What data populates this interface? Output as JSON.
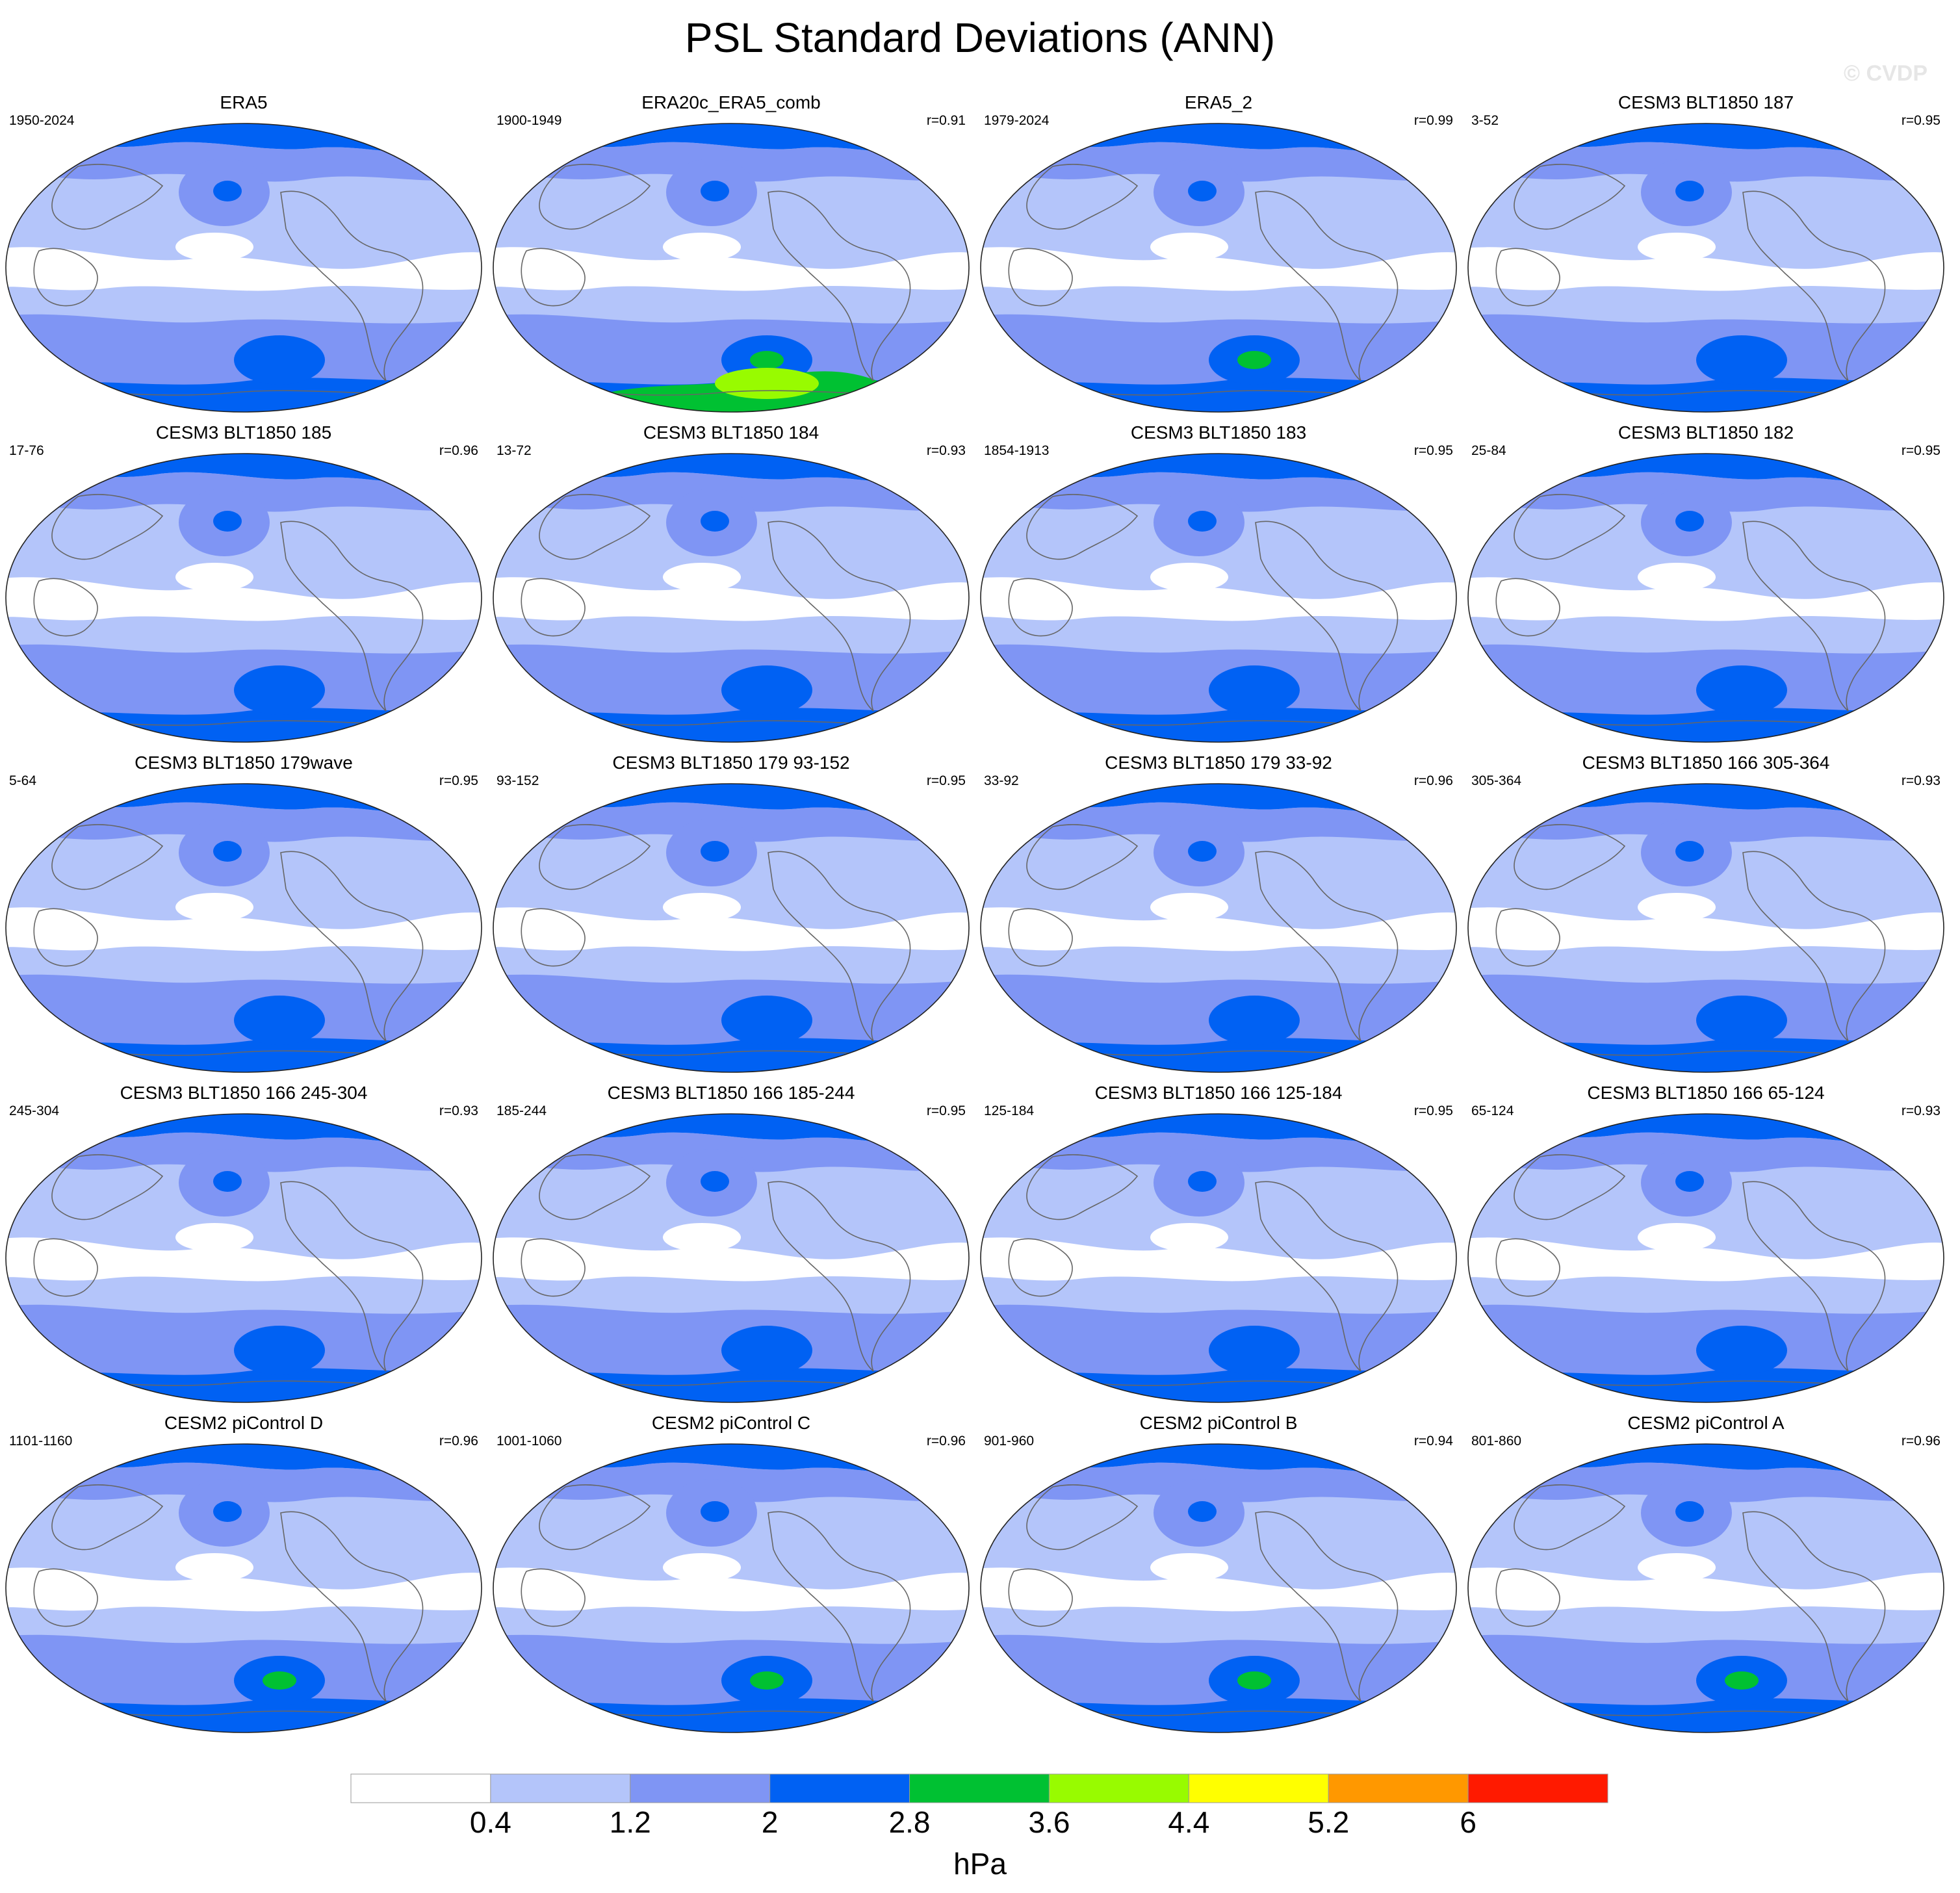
{
  "title": "PSL Standard Deviations (ANN)",
  "watermark": "© CVDP",
  "chart_data": {
    "type": "heatmap",
    "title": "PSL Standard Deviations (ANN)",
    "projection": "robinson",
    "variable": "PSL",
    "season": "ANN",
    "units": "hPa",
    "colorbar": {
      "levels": [
        "0.4",
        "1.2",
        "2",
        "2.8",
        "3.6",
        "4.4",
        "5.2",
        "6"
      ],
      "colors": [
        "#ffffff",
        "#b4c5fa",
        "#7f95f4",
        "#0061f3",
        "#00c132",
        "#98fb00",
        "#ffff00",
        "#ff9800",
        "#ff1a00"
      ]
    },
    "panels": [
      {
        "title": "ERA5",
        "years": "1950-2024",
        "r": "",
        "max_level": 3
      },
      {
        "title": "ERA20c_ERA5_comb",
        "years": "1900-1949",
        "r": "r=0.91",
        "max_level": 5
      },
      {
        "title": "ERA5_2",
        "years": "1979-2024",
        "r": "r=0.99",
        "max_level": 4
      },
      {
        "title": "CESM3 BLT1850 187",
        "years": "3-52",
        "r": "r=0.95",
        "max_level": 3
      },
      {
        "title": "CESM3 BLT1850 185",
        "years": "17-76",
        "r": "r=0.96",
        "max_level": 3
      },
      {
        "title": "CESM3 BLT1850 184",
        "years": "13-72",
        "r": "r=0.93",
        "max_level": 3
      },
      {
        "title": "CESM3 BLT1850 183",
        "years": "1854-1913",
        "r": "r=0.95",
        "max_level": 3
      },
      {
        "title": "CESM3 BLT1850 182",
        "years": "25-84",
        "r": "r=0.95",
        "max_level": 3
      },
      {
        "title": "CESM3 BLT1850 179wave",
        "years": "5-64",
        "r": "r=0.95",
        "max_level": 3
      },
      {
        "title": "CESM3 BLT1850 179 93-152",
        "years": "93-152",
        "r": "r=0.95",
        "max_level": 3
      },
      {
        "title": "CESM3 BLT1850 179 33-92",
        "years": "33-92",
        "r": "r=0.96",
        "max_level": 3
      },
      {
        "title": "CESM3 BLT1850 166 305-364",
        "years": "305-364",
        "r": "r=0.93",
        "max_level": 3
      },
      {
        "title": "CESM3 BLT1850 166 245-304",
        "years": "245-304",
        "r": "r=0.93",
        "max_level": 3
      },
      {
        "title": "CESM3 BLT1850 166 185-244",
        "years": "185-244",
        "r": "r=0.95",
        "max_level": 3
      },
      {
        "title": "CESM3 BLT1850 166 125-184",
        "years": "125-184",
        "r": "r=0.95",
        "max_level": 3
      },
      {
        "title": "CESM3 BLT1850 166 65-124",
        "years": "65-124",
        "r": "r=0.93",
        "max_level": 3
      },
      {
        "title": "CESM2 piControl D",
        "years": "1101-1160",
        "r": "r=0.96",
        "max_level": 4
      },
      {
        "title": "CESM2 piControl C",
        "years": "1001-1060",
        "r": "r=0.96",
        "max_level": 4
      },
      {
        "title": "CESM2 piControl B",
        "years": "901-960",
        "r": "r=0.94",
        "max_level": 4
      },
      {
        "title": "CESM2 piControl A",
        "years": "801-860",
        "r": "r=0.96",
        "max_level": 4
      }
    ]
  }
}
